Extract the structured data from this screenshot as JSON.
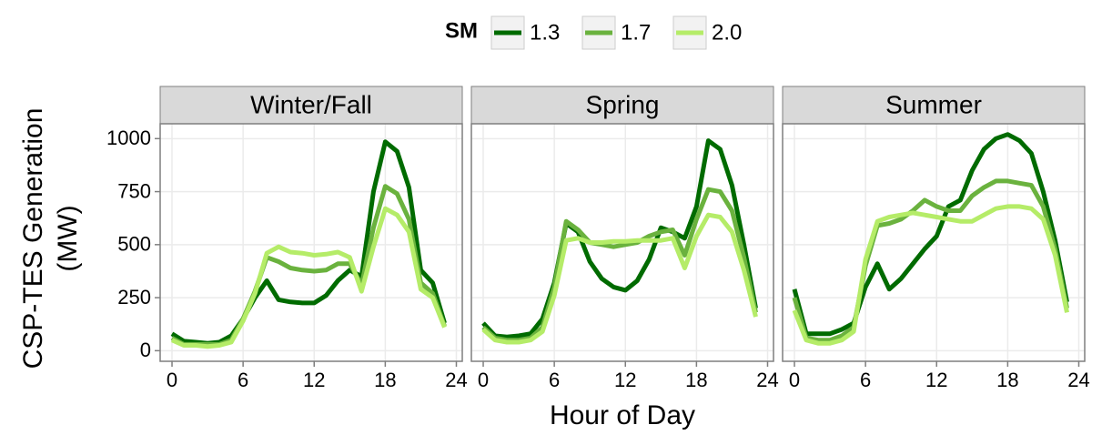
{
  "figure": {
    "legend_title": "SM",
    "xlabel": "Hour of Day",
    "ylabel": [
      "CSP-TES Generation",
      "(MW)"
    ]
  },
  "chart_data": [
    {
      "type": "line",
      "title": "Winter/Fall",
      "grid": true,
      "x": [
        0,
        1,
        2,
        3,
        4,
        5,
        6,
        7,
        8,
        9,
        10,
        11,
        12,
        13,
        14,
        15,
        16,
        17,
        18,
        19,
        20,
        21,
        22,
        23
      ],
      "xlim": [
        -1,
        24.5
      ],
      "xticks": [
        0,
        6,
        12,
        18,
        24
      ],
      "ylim": [
        -50,
        1070
      ],
      "yticks": [
        0,
        250,
        500,
        750,
        1000
      ],
      "series": [
        {
          "name": "1.3",
          "color": "#006b00",
          "values": [
            80,
            45,
            40,
            35,
            40,
            70,
            150,
            250,
            330,
            240,
            230,
            225,
            225,
            260,
            330,
            380,
            350,
            750,
            985,
            940,
            770,
            380,
            320,
            130
          ]
        },
        {
          "name": "1.7",
          "color": "#6ab23e",
          "values": [
            60,
            30,
            30,
            30,
            30,
            50,
            150,
            280,
            440,
            420,
            390,
            380,
            375,
            380,
            410,
            410,
            310,
            580,
            775,
            740,
            620,
            320,
            270,
            115
          ]
        },
        {
          "name": "2.0",
          "color": "#b5ec68",
          "values": [
            50,
            25,
            25,
            20,
            25,
            40,
            140,
            270,
            460,
            490,
            465,
            460,
            450,
            455,
            465,
            440,
            280,
            490,
            670,
            640,
            560,
            290,
            250,
            110
          ]
        }
      ]
    },
    {
      "type": "line",
      "title": "Spring",
      "grid": true,
      "x": [
        0,
        1,
        2,
        3,
        4,
        5,
        6,
        7,
        8,
        9,
        10,
        11,
        12,
        13,
        14,
        15,
        16,
        17,
        18,
        19,
        20,
        21,
        22,
        23
      ],
      "xlim": [
        -1,
        24.5
      ],
      "xticks": [
        0,
        6,
        12,
        18,
        24
      ],
      "ylim": [
        -50,
        1070
      ],
      "yticks": [
        0,
        250,
        500,
        750,
        1000
      ],
      "series": [
        {
          "name": "1.3",
          "color": "#006b00",
          "values": [
            130,
            70,
            65,
            70,
            80,
            150,
            320,
            600,
            560,
            420,
            340,
            300,
            285,
            330,
            430,
            580,
            560,
            530,
            680,
            990,
            950,
            780,
            500,
            200
          ]
        },
        {
          "name": "1.7",
          "color": "#6ab23e",
          "values": [
            110,
            60,
            50,
            50,
            60,
            110,
            300,
            610,
            570,
            510,
            500,
            490,
            500,
            510,
            540,
            560,
            570,
            450,
            620,
            760,
            750,
            660,
            440,
            180
          ]
        },
        {
          "name": "2.0",
          "color": "#b5ec68",
          "values": [
            100,
            50,
            40,
            40,
            50,
            90,
            260,
            520,
            530,
            510,
            510,
            515,
            515,
            520,
            520,
            520,
            530,
            390,
            540,
            640,
            630,
            560,
            380,
            160
          ]
        }
      ]
    },
    {
      "type": "line",
      "title": "Summer",
      "grid": true,
      "x": [
        0,
        1,
        2,
        3,
        4,
        5,
        6,
        7,
        8,
        9,
        10,
        11,
        12,
        13,
        14,
        15,
        16,
        17,
        18,
        19,
        20,
        21,
        22,
        23
      ],
      "xlim": [
        -1,
        24.5
      ],
      "xticks": [
        0,
        6,
        12,
        18,
        24
      ],
      "ylim": [
        -50,
        1070
      ],
      "yticks": [
        0,
        250,
        500,
        750,
        1000
      ],
      "series": [
        {
          "name": "1.3",
          "color": "#006b00",
          "values": [
            290,
            80,
            80,
            80,
            100,
            130,
            300,
            410,
            290,
            340,
            410,
            480,
            540,
            680,
            710,
            850,
            950,
            1000,
            1020,
            990,
            930,
            750,
            520,
            230
          ]
        },
        {
          "name": "1.7",
          "color": "#6ab23e",
          "values": [
            250,
            60,
            50,
            50,
            70,
            110,
            400,
            590,
            600,
            620,
            660,
            710,
            680,
            660,
            660,
            730,
            770,
            800,
            800,
            790,
            780,
            680,
            480,
            200
          ]
        },
        {
          "name": "2.0",
          "color": "#b5ec68",
          "values": [
            190,
            50,
            35,
            35,
            50,
            90,
            430,
            610,
            630,
            640,
            650,
            640,
            630,
            620,
            610,
            610,
            640,
            670,
            680,
            680,
            670,
            620,
            450,
            180
          ]
        }
      ]
    }
  ]
}
